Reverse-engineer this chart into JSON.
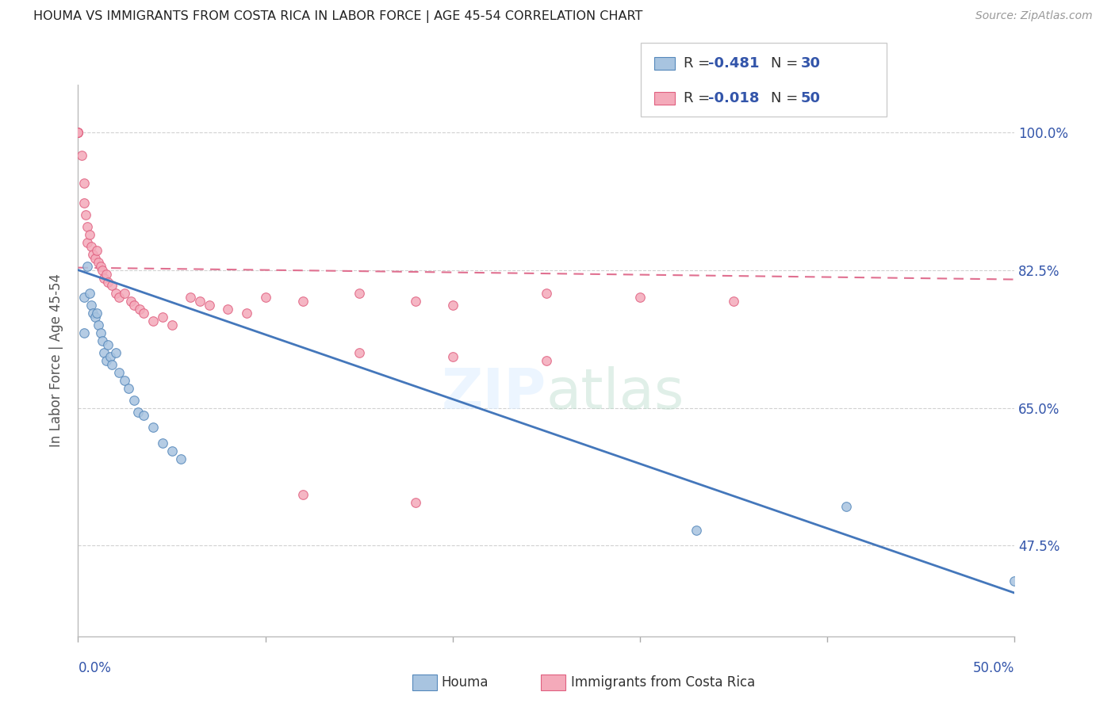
{
  "title": "HOUMA VS IMMIGRANTS FROM COSTA RICA IN LABOR FORCE | AGE 45-54 CORRELATION CHART",
  "source": "Source: ZipAtlas.com",
  "ylabel": "In Labor Force | Age 45-54",
  "xlim": [
    0.0,
    0.5
  ],
  "ylim": [
    0.36,
    1.06
  ],
  "ylabel_tick_vals": [
    0.475,
    0.65,
    0.825,
    1.0
  ],
  "ylabel_tick_labels": [
    "47.5%",
    "65.0%",
    "82.5%",
    "100.0%"
  ],
  "watermark": "ZIPatlas",
  "blue_color": "#A8C4E0",
  "pink_color": "#F4AABA",
  "blue_edge_color": "#5588BB",
  "pink_edge_color": "#E06080",
  "blue_line_color": "#4477BB",
  "pink_line_color": "#E07090",
  "houma_scatter_x": [
    0.003,
    0.003,
    0.005,
    0.006,
    0.007,
    0.008,
    0.009,
    0.01,
    0.011,
    0.012,
    0.013,
    0.014,
    0.015,
    0.016,
    0.017,
    0.018,
    0.02,
    0.022,
    0.025,
    0.027,
    0.03,
    0.032,
    0.035,
    0.04,
    0.045,
    0.05,
    0.055,
    0.33,
    0.41,
    0.5
  ],
  "houma_scatter_y": [
    0.79,
    0.745,
    0.83,
    0.795,
    0.78,
    0.77,
    0.765,
    0.77,
    0.755,
    0.745,
    0.735,
    0.72,
    0.71,
    0.73,
    0.715,
    0.705,
    0.72,
    0.695,
    0.685,
    0.675,
    0.66,
    0.645,
    0.64,
    0.625,
    0.605,
    0.595,
    0.585,
    0.495,
    0.525,
    0.43
  ],
  "costa_scatter_x": [
    0.0,
    0.0,
    0.0,
    0.0,
    0.002,
    0.003,
    0.003,
    0.004,
    0.005,
    0.005,
    0.006,
    0.007,
    0.008,
    0.009,
    0.01,
    0.011,
    0.012,
    0.013,
    0.014,
    0.015,
    0.016,
    0.018,
    0.02,
    0.022,
    0.025,
    0.028,
    0.03,
    0.033,
    0.035,
    0.04,
    0.045,
    0.05,
    0.06,
    0.065,
    0.07,
    0.08,
    0.09,
    0.1,
    0.12,
    0.15,
    0.18,
    0.2,
    0.25,
    0.3,
    0.35,
    0.15,
    0.2,
    0.25,
    0.12,
    0.18
  ],
  "costa_scatter_y": [
    1.0,
    1.0,
    1.0,
    1.0,
    0.97,
    0.935,
    0.91,
    0.895,
    0.88,
    0.86,
    0.87,
    0.855,
    0.845,
    0.84,
    0.85,
    0.835,
    0.83,
    0.825,
    0.815,
    0.82,
    0.81,
    0.805,
    0.795,
    0.79,
    0.795,
    0.785,
    0.78,
    0.775,
    0.77,
    0.76,
    0.765,
    0.755,
    0.79,
    0.785,
    0.78,
    0.775,
    0.77,
    0.79,
    0.785,
    0.795,
    0.785,
    0.78,
    0.795,
    0.79,
    0.785,
    0.72,
    0.715,
    0.71,
    0.54,
    0.53
  ],
  "blue_line_x": [
    0.0,
    0.5
  ],
  "blue_line_y": [
    0.825,
    0.415
  ],
  "pink_line_x": [
    0.0,
    0.5
  ],
  "pink_line_y": [
    0.828,
    0.813
  ],
  "background_color": "#FFFFFF",
  "grid_color": "#CCCCCC",
  "legend_blue_R": "R = ",
  "legend_blue_val": "-0.481",
  "legend_blue_N": "N = ",
  "legend_blue_N_val": "30",
  "legend_pink_R": "R = ",
  "legend_pink_val": "-0.018",
  "legend_pink_N": "N = ",
  "legend_pink_N_val": "50",
  "legend_text_color": "#333333",
  "legend_val_color": "#3355AA",
  "bottom_legend_houma": "Houma",
  "bottom_legend_cr": "Immigrants from Costa Rica"
}
